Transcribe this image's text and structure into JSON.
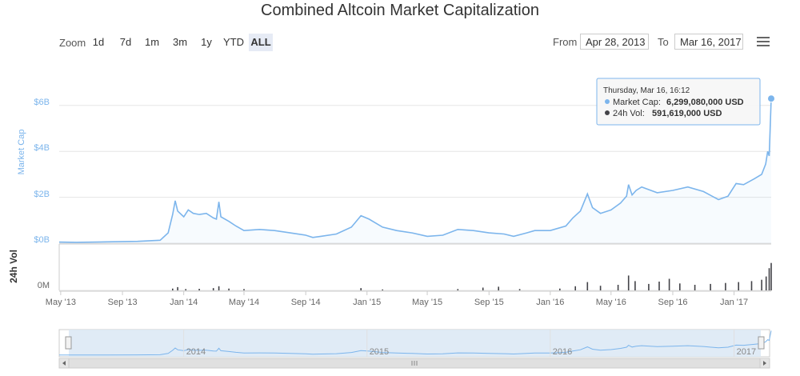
{
  "title": "Combined Altcoin Market Capitalization",
  "zoom": {
    "label": "Zoom",
    "buttons": [
      "1d",
      "7d",
      "1m",
      "3m",
      "1y",
      "YTD",
      "ALL"
    ],
    "active": "ALL"
  },
  "range": {
    "from_label": "From",
    "from_value": "Apr 28, 2013",
    "to_label": "To",
    "to_value": "Mar 16, 2017"
  },
  "tooltip": {
    "header": "Thursday, Mar 16, 16:12",
    "market_cap_label": "Market Cap:",
    "market_cap_value": "6,299,080,000 USD",
    "volume_label": "24h Vol:",
    "volume_value": "591,619,000 USD"
  },
  "chart_data": {
    "type": "line",
    "title": "Combined Altcoin Market Capitalization",
    "x_range": [
      "2013-04-28",
      "2017-03-16"
    ],
    "xtick_labels": [
      "May '13",
      "Sep '13",
      "Jan '14",
      "May '14",
      "Sep '14",
      "Jan '15",
      "May '15",
      "Sep '15",
      "Jan '16",
      "May '16",
      "Sep '16",
      "Jan '17"
    ],
    "xtick_dates": [
      "2013-05-01",
      "2013-09-01",
      "2014-01-01",
      "2014-05-01",
      "2014-09-01",
      "2015-01-01",
      "2015-05-01",
      "2015-09-01",
      "2016-01-01",
      "2016-05-01",
      "2016-09-01",
      "2017-01-01"
    ],
    "navigator_labels": [
      "2014",
      "2015",
      "2016",
      "2017"
    ],
    "navigator_dates": [
      "2014-01-01",
      "2015-01-01",
      "2016-01-01",
      "2017-01-01"
    ],
    "ylabel": "Market Cap",
    "yticks": [
      "$0B",
      "$2B",
      "$4B",
      "$6B"
    ],
    "ylim": [
      0,
      7
    ],
    "unit": "Billion USD",
    "series": [
      {
        "name": "Market Cap",
        "color": "#7cb5ec",
        "points": [
          [
            "2013-04-28",
            0.05
          ],
          [
            "2013-06-01",
            0.04
          ],
          [
            "2013-08-01",
            0.06
          ],
          [
            "2013-10-01",
            0.08
          ],
          [
            "2013-11-15",
            0.13
          ],
          [
            "2013-12-01",
            0.45
          ],
          [
            "2013-12-10",
            1.25
          ],
          [
            "2013-12-15",
            1.85
          ],
          [
            "2013-12-20",
            1.4
          ],
          [
            "2014-01-01",
            1.15
          ],
          [
            "2014-01-10",
            1.45
          ],
          [
            "2014-01-20",
            1.3
          ],
          [
            "2014-02-01",
            1.25
          ],
          [
            "2014-02-15",
            1.3
          ],
          [
            "2014-03-01",
            1.1
          ],
          [
            "2014-03-07",
            1.05
          ],
          [
            "2014-03-12",
            1.8
          ],
          [
            "2014-03-16",
            1.15
          ],
          [
            "2014-04-01",
            0.95
          ],
          [
            "2014-04-15",
            0.75
          ],
          [
            "2014-05-01",
            0.55
          ],
          [
            "2014-06-01",
            0.6
          ],
          [
            "2014-07-01",
            0.55
          ],
          [
            "2014-08-01",
            0.45
          ],
          [
            "2014-09-01",
            0.35
          ],
          [
            "2014-09-15",
            0.25
          ],
          [
            "2014-10-01",
            0.3
          ],
          [
            "2014-11-01",
            0.4
          ],
          [
            "2014-12-01",
            0.7
          ],
          [
            "2014-12-20",
            1.2
          ],
          [
            "2015-01-05",
            1.05
          ],
          [
            "2015-02-01",
            0.7
          ],
          [
            "2015-03-01",
            0.55
          ],
          [
            "2015-04-01",
            0.45
          ],
          [
            "2015-05-01",
            0.3
          ],
          [
            "2015-06-01",
            0.35
          ],
          [
            "2015-07-01",
            0.6
          ],
          [
            "2015-08-01",
            0.55
          ],
          [
            "2015-09-01",
            0.45
          ],
          [
            "2015-10-01",
            0.4
          ],
          [
            "2015-10-20",
            0.3
          ],
          [
            "2015-11-15",
            0.45
          ],
          [
            "2015-12-01",
            0.55
          ],
          [
            "2016-01-01",
            0.55
          ],
          [
            "2016-02-01",
            0.75
          ],
          [
            "2016-02-15",
            1.1
          ],
          [
            "2016-03-01",
            1.4
          ],
          [
            "2016-03-15",
            2.15
          ],
          [
            "2016-03-25",
            1.55
          ],
          [
            "2016-04-10",
            1.3
          ],
          [
            "2016-05-01",
            1.45
          ],
          [
            "2016-05-20",
            1.75
          ],
          [
            "2016-06-01",
            2.05
          ],
          [
            "2016-06-05",
            2.55
          ],
          [
            "2016-06-12",
            2.1
          ],
          [
            "2016-06-20",
            2.3
          ],
          [
            "2016-07-01",
            2.45
          ],
          [
            "2016-08-01",
            2.2
          ],
          [
            "2016-09-01",
            2.3
          ],
          [
            "2016-10-01",
            2.45
          ],
          [
            "2016-11-01",
            2.25
          ],
          [
            "2016-12-01",
            1.9
          ],
          [
            "2016-12-20",
            2.05
          ],
          [
            "2017-01-05",
            2.6
          ],
          [
            "2017-01-20",
            2.55
          ],
          [
            "2017-02-10",
            2.8
          ],
          [
            "2017-02-25",
            3.0
          ],
          [
            "2017-03-05",
            3.45
          ],
          [
            "2017-03-09",
            4.0
          ],
          [
            "2017-03-12",
            3.8
          ],
          [
            "2017-03-14",
            5.0
          ],
          [
            "2017-03-16",
            6.3
          ]
        ]
      }
    ],
    "volume": {
      "name": "24h Vol",
      "label": "24h Vol",
      "ytick": "0M",
      "color": "#434348",
      "unit": "Million USD",
      "ylim": [
        0,
        1000
      ],
      "points": [
        [
          "2013-12-10",
          40
        ],
        [
          "2013-12-20",
          70
        ],
        [
          "2014-01-05",
          30
        ],
        [
          "2014-02-01",
          35
        ],
        [
          "2014-03-01",
          50
        ],
        [
          "2014-03-12",
          90
        ],
        [
          "2014-04-01",
          40
        ],
        [
          "2014-05-01",
          30
        ],
        [
          "2014-12-20",
          50
        ],
        [
          "2015-02-01",
          20
        ],
        [
          "2015-07-01",
          30
        ],
        [
          "2015-08-20",
          60
        ],
        [
          "2015-09-20",
          80
        ],
        [
          "2015-11-01",
          30
        ],
        [
          "2016-01-20",
          40
        ],
        [
          "2016-02-20",
          90
        ],
        [
          "2016-03-15",
          180
        ],
        [
          "2016-04-10",
          100
        ],
        [
          "2016-05-15",
          120
        ],
        [
          "2016-06-05",
          320
        ],
        [
          "2016-06-18",
          200
        ],
        [
          "2016-07-15",
          140
        ],
        [
          "2016-08-05",
          190
        ],
        [
          "2016-08-25",
          250
        ],
        [
          "2016-09-15",
          150
        ],
        [
          "2016-10-15",
          120
        ],
        [
          "2016-11-15",
          140
        ],
        [
          "2016-12-15",
          160
        ],
        [
          "2017-01-10",
          180
        ],
        [
          "2017-02-05",
          200
        ],
        [
          "2017-02-25",
          230
        ],
        [
          "2017-03-06",
          300
        ],
        [
          "2017-03-12",
          480
        ],
        [
          "2017-03-16",
          592
        ]
      ]
    },
    "legend": "none",
    "grid": true
  }
}
